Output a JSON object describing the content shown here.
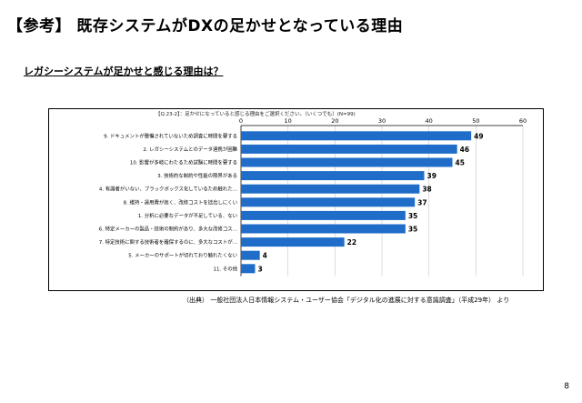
{
  "slide": {
    "title": "【参考】 既存システムがDXの足かせとなっている理由",
    "subtitle": "レガシーシステムが足かせと感じる理由は？",
    "source": "（出典） 一般社団法人日本情報システム・ユーザー協会「デジタル化の進展に対する意識調査」（平成29年） より",
    "page_number": "8"
  },
  "chart_data": {
    "type": "bar",
    "orientation": "horizontal",
    "question": "【Q.23-2】：足かせになっていると感じる理由をご選択ください。（いくつでも）(N=99)",
    "categories": [
      "9. ドキュメントが整備されていないため調査に時間を要する",
      "2. レガシーシステムとのデータ連携が困難",
      "10. 影響が多岐にわたるため試験に時間を要する",
      "3. 技術的な制約や性能の限界がある",
      "4. 有識者がいない、ブラックボックス化しているため触れたくない",
      "8. 維持・運用費が高く、改修コストを捻出しにくい",
      "1. 分析に必要なデータが不足している、ない",
      "6. 特定メーカーの製品・技術の制約があり、多大な改修コストがかかる",
      "7. 特定技術に関する技術者を確保するのに、多大なコストがかかる",
      "5. メーカーのサポートが切れており触れたくない",
      "11. その他"
    ],
    "displayed_labels": [
      "9. ドキュメントが整備されていないため調査に時間を要する",
      "2. レガシーシステムとのデータ連携が困難",
      "10. 影響が多岐にわたるため試験に時間を要する",
      "3. 技術的な制約や性能の限界がある",
      "4. 有識者がいない、ブラックボックス化しているため触れた…",
      "8. 維持・運用費が高く、改修コストを捻出しにくい",
      "1. 分析に必要なデータが不足している、ない",
      "6. 特定メーカーの製品・技術の制約があり、多大な改修コス…",
      "7. 特定技術に関する技術者を確保するのに、多大なコストが…",
      "5. メーカーのサポートが切れており触れたくない",
      "11. その他"
    ],
    "values": [
      49,
      46,
      45,
      39,
      38,
      37,
      35,
      35,
      22,
      4,
      3
    ],
    "xlim": [
      0,
      60
    ],
    "xticks": [
      0,
      10,
      20,
      30,
      40,
      50,
      60
    ],
    "grid": true,
    "bar_color": "#1f6dc9"
  }
}
